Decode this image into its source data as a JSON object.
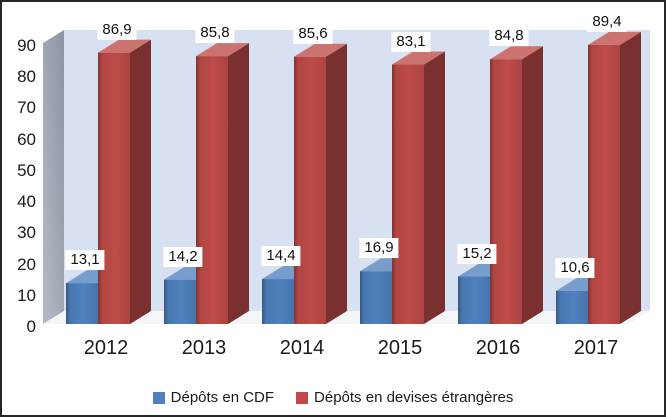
{
  "chart_data": {
    "type": "bar",
    "style": "3d-clustered-column",
    "title": "",
    "categories": [
      "2012",
      "2013",
      "2014",
      "2015",
      "2016",
      "2017"
    ],
    "series": [
      {
        "name": "Dépôts en CDF",
        "color": "#4F81BD",
        "values": [
          13.1,
          14.2,
          14.4,
          16.9,
          15.2,
          10.6
        ],
        "labels": [
          "13,1",
          "14,2",
          "14,4",
          "16,9",
          "15,2",
          "10,6"
        ]
      },
      {
        "name": "Dépôts en devises étrangères",
        "color": "#BE4B48",
        "values": [
          86.9,
          85.8,
          85.6,
          83.1,
          84.8,
          89.4
        ],
        "labels": [
          "86,9",
          "85,8",
          "85,6",
          "83,1",
          "84,8",
          "89,4"
        ]
      }
    ],
    "y_axis": {
      "min": 0,
      "max": 90,
      "ticks": [
        0,
        10,
        20,
        30,
        40,
        50,
        60,
        70,
        80,
        90
      ]
    },
    "legend": {
      "position": "bottom"
    },
    "gridlines": false,
    "data_labels": true,
    "colors": {
      "back_wall": "#D8E1F1",
      "side_wall": "#98A1B0",
      "floor": "#F3F5F9",
      "frame_border": "#262626",
      "label_box": "#FFFFFF",
      "text": "#1A1A1A"
    }
  }
}
